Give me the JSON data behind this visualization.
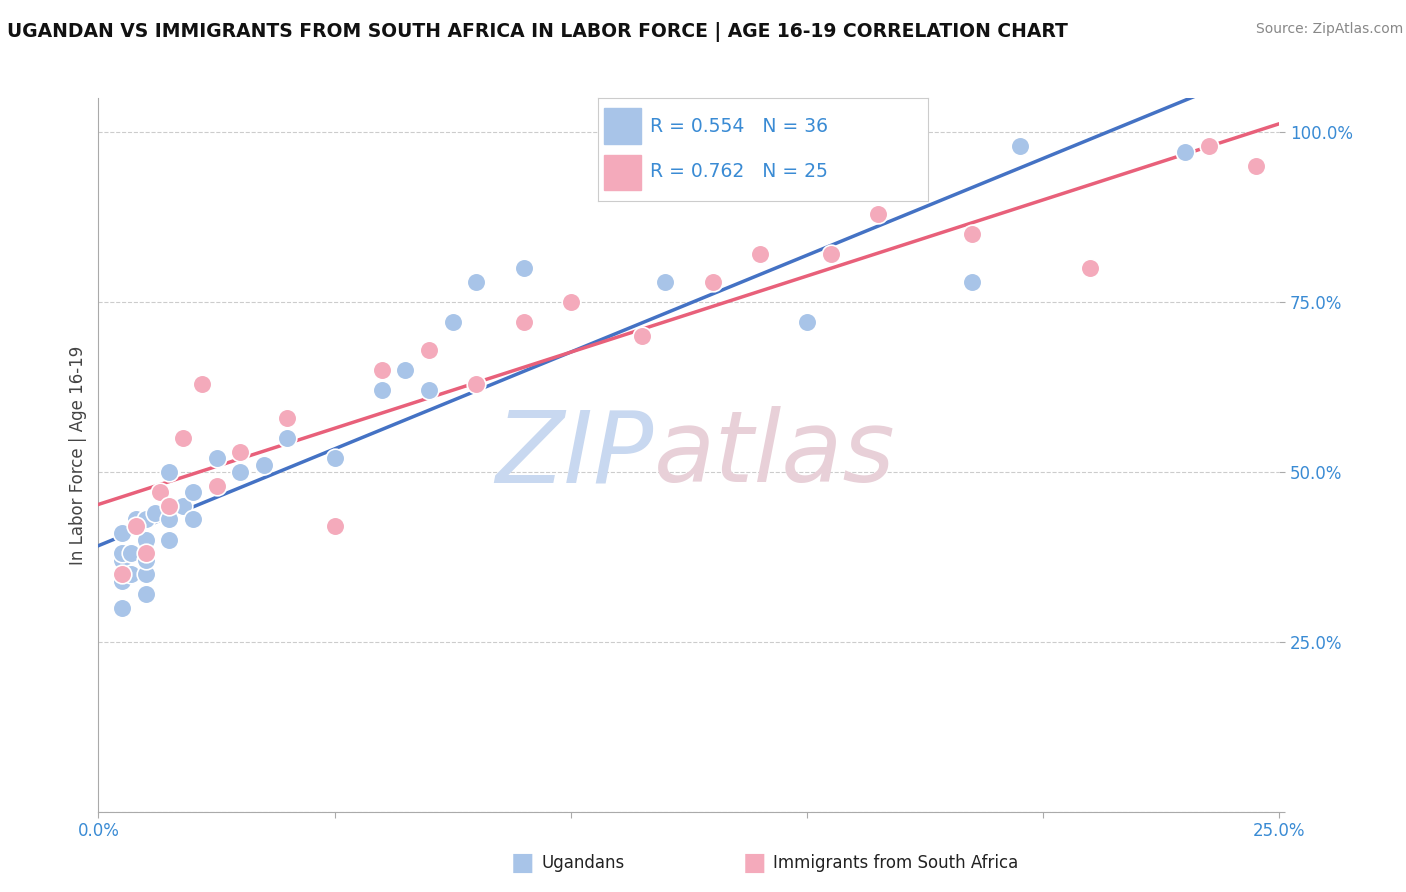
{
  "title": "UGANDAN VS IMMIGRANTS FROM SOUTH AFRICA IN LABOR FORCE | AGE 16-19 CORRELATION CHART",
  "source": "Source: ZipAtlas.com",
  "ylabel": "In Labor Force | Age 16-19",
  "xlim": [
    0.0,
    0.25
  ],
  "ylim": [
    0.0,
    1.05
  ],
  "ugandan_R": 0.554,
  "ugandan_N": 36,
  "sa_R": 0.762,
  "sa_N": 25,
  "blue_color": "#A8C4E8",
  "blue_edge_color": "#7AAAD8",
  "blue_line_color": "#4472C4",
  "pink_color": "#F4AABB",
  "pink_edge_color": "#E07090",
  "pink_line_color": "#E8607A",
  "legend_color": "#3A8BD4",
  "grid_color": "#CCCCCC",
  "tick_color": "#3A8BD4",
  "title_color": "#111111",
  "source_color": "#888888",
  "ylabel_color": "#444444",
  "ugandan_x": [
    0.005,
    0.005,
    0.005,
    0.005,
    0.005,
    0.007,
    0.007,
    0.008,
    0.01,
    0.01,
    0.01,
    0.01,
    0.01,
    0.012,
    0.015,
    0.015,
    0.015,
    0.018,
    0.02,
    0.02,
    0.025,
    0.03,
    0.035,
    0.04,
    0.05,
    0.06,
    0.065,
    0.07,
    0.075,
    0.08,
    0.09,
    0.12,
    0.15,
    0.185,
    0.195,
    0.23
  ],
  "ugandan_y": [
    0.3,
    0.34,
    0.37,
    0.38,
    0.41,
    0.35,
    0.38,
    0.43,
    0.32,
    0.35,
    0.37,
    0.4,
    0.43,
    0.44,
    0.4,
    0.43,
    0.5,
    0.45,
    0.43,
    0.47,
    0.52,
    0.5,
    0.51,
    0.55,
    0.52,
    0.62,
    0.65,
    0.62,
    0.72,
    0.78,
    0.8,
    0.78,
    0.72,
    0.78,
    0.98,
    0.97
  ],
  "sa_x": [
    0.005,
    0.008,
    0.01,
    0.013,
    0.015,
    0.018,
    0.022,
    0.025,
    0.03,
    0.04,
    0.05,
    0.06,
    0.07,
    0.08,
    0.09,
    0.1,
    0.115,
    0.13,
    0.14,
    0.155,
    0.165,
    0.185,
    0.21,
    0.235,
    0.245
  ],
  "sa_y": [
    0.35,
    0.42,
    0.38,
    0.47,
    0.45,
    0.55,
    0.63,
    0.48,
    0.53,
    0.58,
    0.42,
    0.65,
    0.68,
    0.63,
    0.72,
    0.75,
    0.7,
    0.78,
    0.82,
    0.82,
    0.88,
    0.85,
    0.8,
    0.98,
    0.95
  ]
}
